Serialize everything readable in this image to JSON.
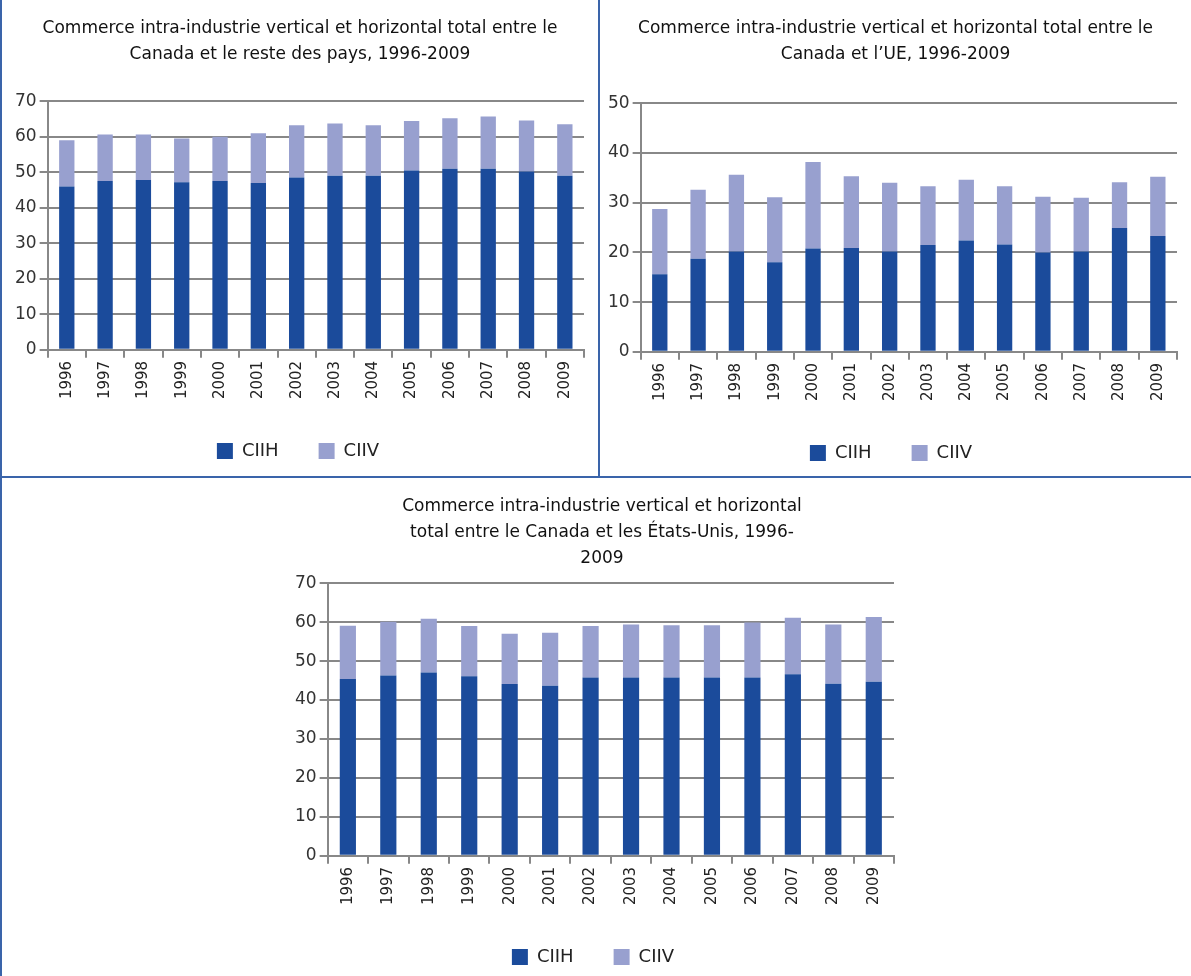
{
  "chart_data": [
    {
      "type": "bar",
      "title": "Commerce intra-industrie vertical et horizontal total entre le Canada et le reste des pays, 1996-2009",
      "categories": [
        "1996",
        "1997",
        "1998",
        "1999",
        "2000",
        "2001",
        "2002",
        "2003",
        "2004",
        "2005",
        "2006",
        "2007",
        "2008",
        "2009"
      ],
      "stacked": true,
      "ylim": [
        0,
        70
      ],
      "yticks": [
        0,
        10,
        20,
        30,
        40,
        50,
        60,
        70
      ],
      "grid": "y",
      "legend": "bottom",
      "series": [
        {
          "name": "CIIH",
          "color": "#1b4b9b",
          "values": [
            46,
            47.5,
            47.8,
            47.2,
            47.5,
            47,
            48.5,
            49,
            49,
            50.5,
            51,
            51,
            50.2,
            49
          ]
        },
        {
          "name": "CIIV",
          "color": "#98a0cf",
          "values": [
            13,
            13.1,
            12.8,
            12.3,
            12.5,
            14,
            14.7,
            14.7,
            14.2,
            13.9,
            14.2,
            14.7,
            14.4,
            14.5
          ]
        }
      ]
    },
    {
      "type": "bar",
      "title": "Commerce intra-industrie vertical et horizontal total entre le Canada et l’UE, 1996-2009",
      "categories": [
        "1996",
        "1997",
        "1998",
        "1999",
        "2000",
        "2001",
        "2002",
        "2003",
        "2004",
        "2005",
        "2006",
        "2007",
        "2008",
        "2009"
      ],
      "stacked": true,
      "ylim": [
        0,
        50
      ],
      "yticks": [
        0,
        10,
        20,
        30,
        40,
        50
      ],
      "grid": "y",
      "legend": "bottom",
      "series": [
        {
          "name": "CIIH",
          "color": "#1b4b9b",
          "values": [
            15.6,
            18.7,
            20.2,
            18,
            20.8,
            20.9,
            20.2,
            21.5,
            22.4,
            21.6,
            20,
            20.2,
            24.9,
            23.3
          ]
        },
        {
          "name": "CIIV",
          "color": "#98a0cf",
          "values": [
            13.1,
            13.9,
            15.4,
            13.1,
            17.4,
            14.4,
            13.8,
            11.8,
            12.2,
            11.7,
            11.2,
            10.8,
            9.2,
            11.9
          ]
        }
      ]
    },
    {
      "type": "bar",
      "title": "Commerce intra-industrie vertical et horizontal total entre le Canada et les États-Unis, 1996-2009",
      "categories": [
        "1996",
        "1997",
        "1998",
        "1999",
        "2000",
        "2001",
        "2002",
        "2003",
        "2004",
        "2005",
        "2006",
        "2007",
        "2008",
        "2009"
      ],
      "stacked": true,
      "ylim": [
        0,
        70
      ],
      "yticks": [
        0,
        10,
        20,
        30,
        40,
        50,
        60,
        70
      ],
      "grid": "y",
      "legend": "bottom",
      "series": [
        {
          "name": "CIIH",
          "color": "#1b4b9b",
          "values": [
            45.4,
            46.3,
            47.1,
            46.1,
            44.1,
            43.7,
            45.8,
            45.8,
            45.8,
            45.8,
            45.8,
            46.6,
            44.2,
            44.7
          ]
        },
        {
          "name": "CIIV",
          "color": "#98a0cf",
          "values": [
            13.7,
            13.8,
            13.8,
            12.9,
            12.9,
            13.6,
            13.2,
            13.6,
            13.4,
            13.4,
            14.1,
            14.5,
            15.2,
            16.6
          ]
        }
      ]
    }
  ]
}
